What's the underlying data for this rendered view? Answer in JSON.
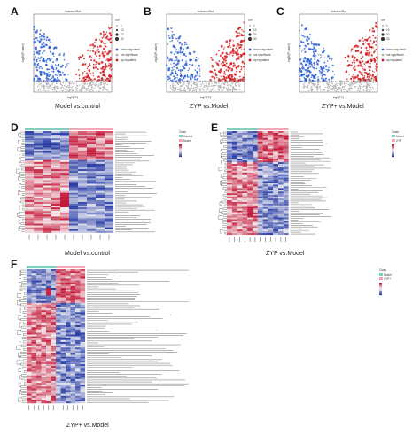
{
  "panels": {
    "A": {
      "letter": "A",
      "title": "Volcano Plot",
      "caption": "Model vs.control",
      "legend": [
        "VIP",
        "1",
        "10",
        "20",
        "30",
        "down regulated",
        "not significant",
        "up regulated"
      ],
      "ylabel": "-log10(P-value)",
      "xlabel": "log2(FC)",
      "threshold": "-log10(0.05)"
    },
    "B": {
      "letter": "B",
      "title": "Volcano Plot",
      "caption": "ZYP vs.Model",
      "legend": [
        "VIP",
        "1",
        "10",
        "20",
        "30",
        "down regulated",
        "not significant",
        "up regulated"
      ],
      "ylabel": "-log10(P-value)",
      "xlabel": "log2(FC)",
      "threshold": "-log10(0.05)"
    },
    "C": {
      "letter": "C",
      "title": "Volcano Plot",
      "caption": "ZYP+ vs.Model",
      "legend": [
        "VIP",
        "1",
        "10",
        "20",
        "30",
        "down regulated",
        "not significant",
        "up regulated"
      ],
      "ylabel": "-log10(P-value)",
      "xlabel": "log2(FC)",
      "threshold": "-log10(0.05)"
    },
    "D": {
      "letter": "D",
      "caption": "Model vs.control",
      "legend": [
        "Class",
        "Control",
        "Model"
      ]
    },
    "E": {
      "letter": "E",
      "caption": "ZYP vs.Model",
      "legend": [
        "Class",
        "Model",
        "ZYP"
      ]
    },
    "F": {
      "letter": "F",
      "caption": "ZYP+ vs.Model",
      "legend": [
        "Class",
        "Model",
        "ZYP+"
      ]
    }
  },
  "colors": {
    "up": "#d7191c",
    "down": "#2c5fd6",
    "ns": "#b0b0b0",
    "hm_high": "#c51b3b",
    "hm_mid": "#f7f7f7",
    "hm_low": "#2b3fa6",
    "class_a": "#7ad1c0",
    "class_b": "#f4a6b7"
  }
}
